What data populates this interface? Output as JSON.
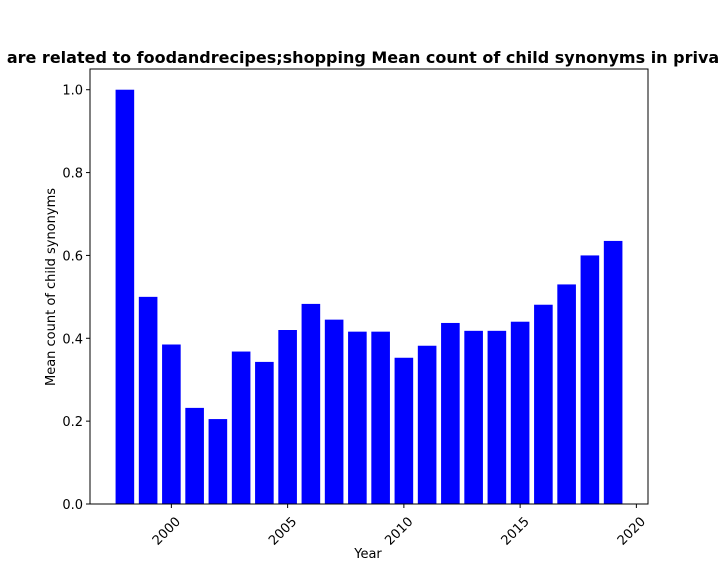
{
  "chart_data": {
    "type": "bar",
    "title": "are related to foodandrecipes;shopping Mean count of child synonyms in priva",
    "xlabel": "Year",
    "ylabel": "Mean count of child synonyms",
    "x": [
      1998,
      1999,
      2000,
      2001,
      2002,
      2003,
      2004,
      2005,
      2006,
      2007,
      2008,
      2009,
      2010,
      2011,
      2012,
      2013,
      2014,
      2015,
      2016,
      2017,
      2018,
      2019
    ],
    "values": [
      1.0,
      0.5,
      0.385,
      0.232,
      0.205,
      0.368,
      0.343,
      0.42,
      0.483,
      0.445,
      0.416,
      0.416,
      0.353,
      0.382,
      0.437,
      0.418,
      0.418,
      0.44,
      0.481,
      0.53,
      0.6,
      0.635
    ],
    "xlim": [
      1996.5,
      2020.5
    ],
    "ylim": [
      0,
      1.05
    ],
    "xticks": [
      2000,
      2005,
      2010,
      2015,
      2020
    ],
    "xtick_labels": [
      "2000",
      "2005",
      "2010",
      "2015",
      "2020"
    ],
    "yticks": [
      0.0,
      0.2,
      0.4,
      0.6,
      0.8,
      1.0
    ],
    "ytick_labels": [
      "0.0",
      "0.2",
      "0.4",
      "0.6",
      "0.8",
      "1.0"
    ],
    "bar_color": "#0000ff",
    "grid": false,
    "legend": "none"
  }
}
